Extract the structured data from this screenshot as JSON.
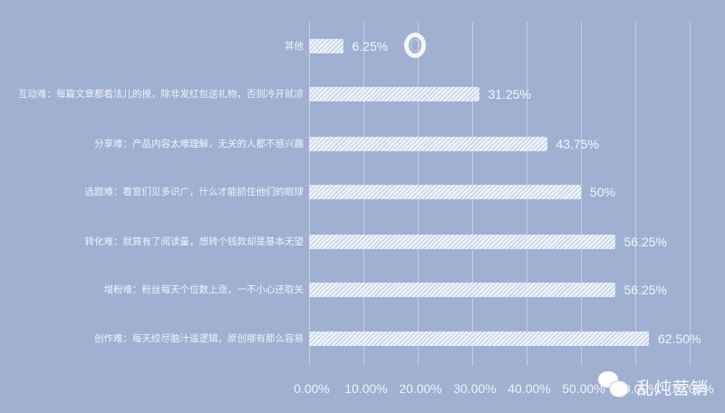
{
  "chart_data": {
    "type": "bar",
    "orientation": "horizontal",
    "title": "",
    "xlabel": "",
    "ylabel": "",
    "xlim": [
      0,
      70
    ],
    "grid": true,
    "legend": "none",
    "categories": [
      "其他",
      "互动难：每篇文章都看法儿的撩，除非发红包送礼物，否则冷开就凉",
      "分享难：产品内容太难理解，无关的人都不感兴趣",
      "选题难：看官们见多识广，什么才能抓住他们的眼球",
      "转化难：就算有了阅读量，想转个钱款却是基本无望",
      "增粉难：粉丝每天个位数上涨，一不小心还取关",
      "创作难：每天绞尽脑汁逼逻辑，原创哪有那么容易"
    ],
    "values": [
      6.25,
      31.25,
      43.75,
      50,
      56.25,
      56.25,
      62.5
    ],
    "value_labels": [
      "6.25%",
      "31.25%",
      "43.75%",
      "50%",
      "56.25%",
      "56.25%",
      "62.50%"
    ],
    "x_ticks": [
      "0.00%",
      "10.00%",
      "20.00%",
      "30.00%",
      "40.00%",
      "50.00%",
      "60.00%",
      "70.00%"
    ],
    "bar_fill": "diagonal-hatch white",
    "background": "#9fb0d1"
  },
  "watermark": {
    "icon": "wechat-icon",
    "text": "乱炖营销"
  }
}
